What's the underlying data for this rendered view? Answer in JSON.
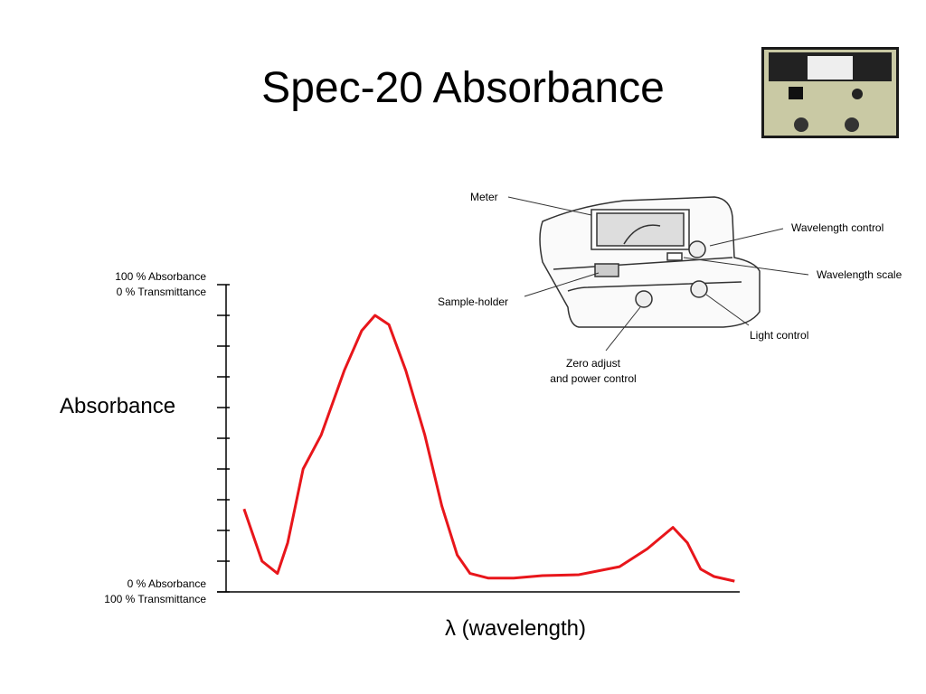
{
  "title": "Spec-20 Absorbance",
  "chart_data": {
    "type": "line",
    "y_label": "Absorbance",
    "x_label": "λ (wavelength)",
    "xlim": [
      0,
      100
    ],
    "ylim": [
      0,
      100
    ],
    "yticks": [
      {
        "value": 0,
        "label": "0 % Absorbance\n100 % Transmittance"
      },
      {
        "value": 100,
        "label": "100 % Absorbance\n0 % Transmittance"
      }
    ],
    "ytick_marks": [
      10,
      20,
      30,
      40,
      50,
      60,
      70,
      80,
      90
    ],
    "series": [
      {
        "color": "#e8161b",
        "x": [
          3.5,
          7,
          10,
          12,
          15,
          18.5,
          23,
          26.4,
          29,
          31.7,
          35,
          38.7,
          42,
          45,
          47.5,
          51,
          56,
          61.6,
          68.7,
          76.6,
          82,
          87,
          89.8,
          92.4,
          95,
          99
        ],
        "values": [
          27,
          10,
          6,
          16,
          40,
          51,
          72,
          85,
          90,
          87,
          72,
          51,
          28,
          12,
          6,
          4.5,
          4.5,
          5.3,
          5.6,
          8.2,
          14,
          21,
          16,
          7.4,
          5,
          3.5
        ]
      }
    ]
  },
  "diagram": {
    "labels": [
      "Meter",
      "Wavelength control",
      "Wavelength scale",
      "Sample-holder",
      "Light control",
      "Zero adjust\nand power control"
    ]
  }
}
